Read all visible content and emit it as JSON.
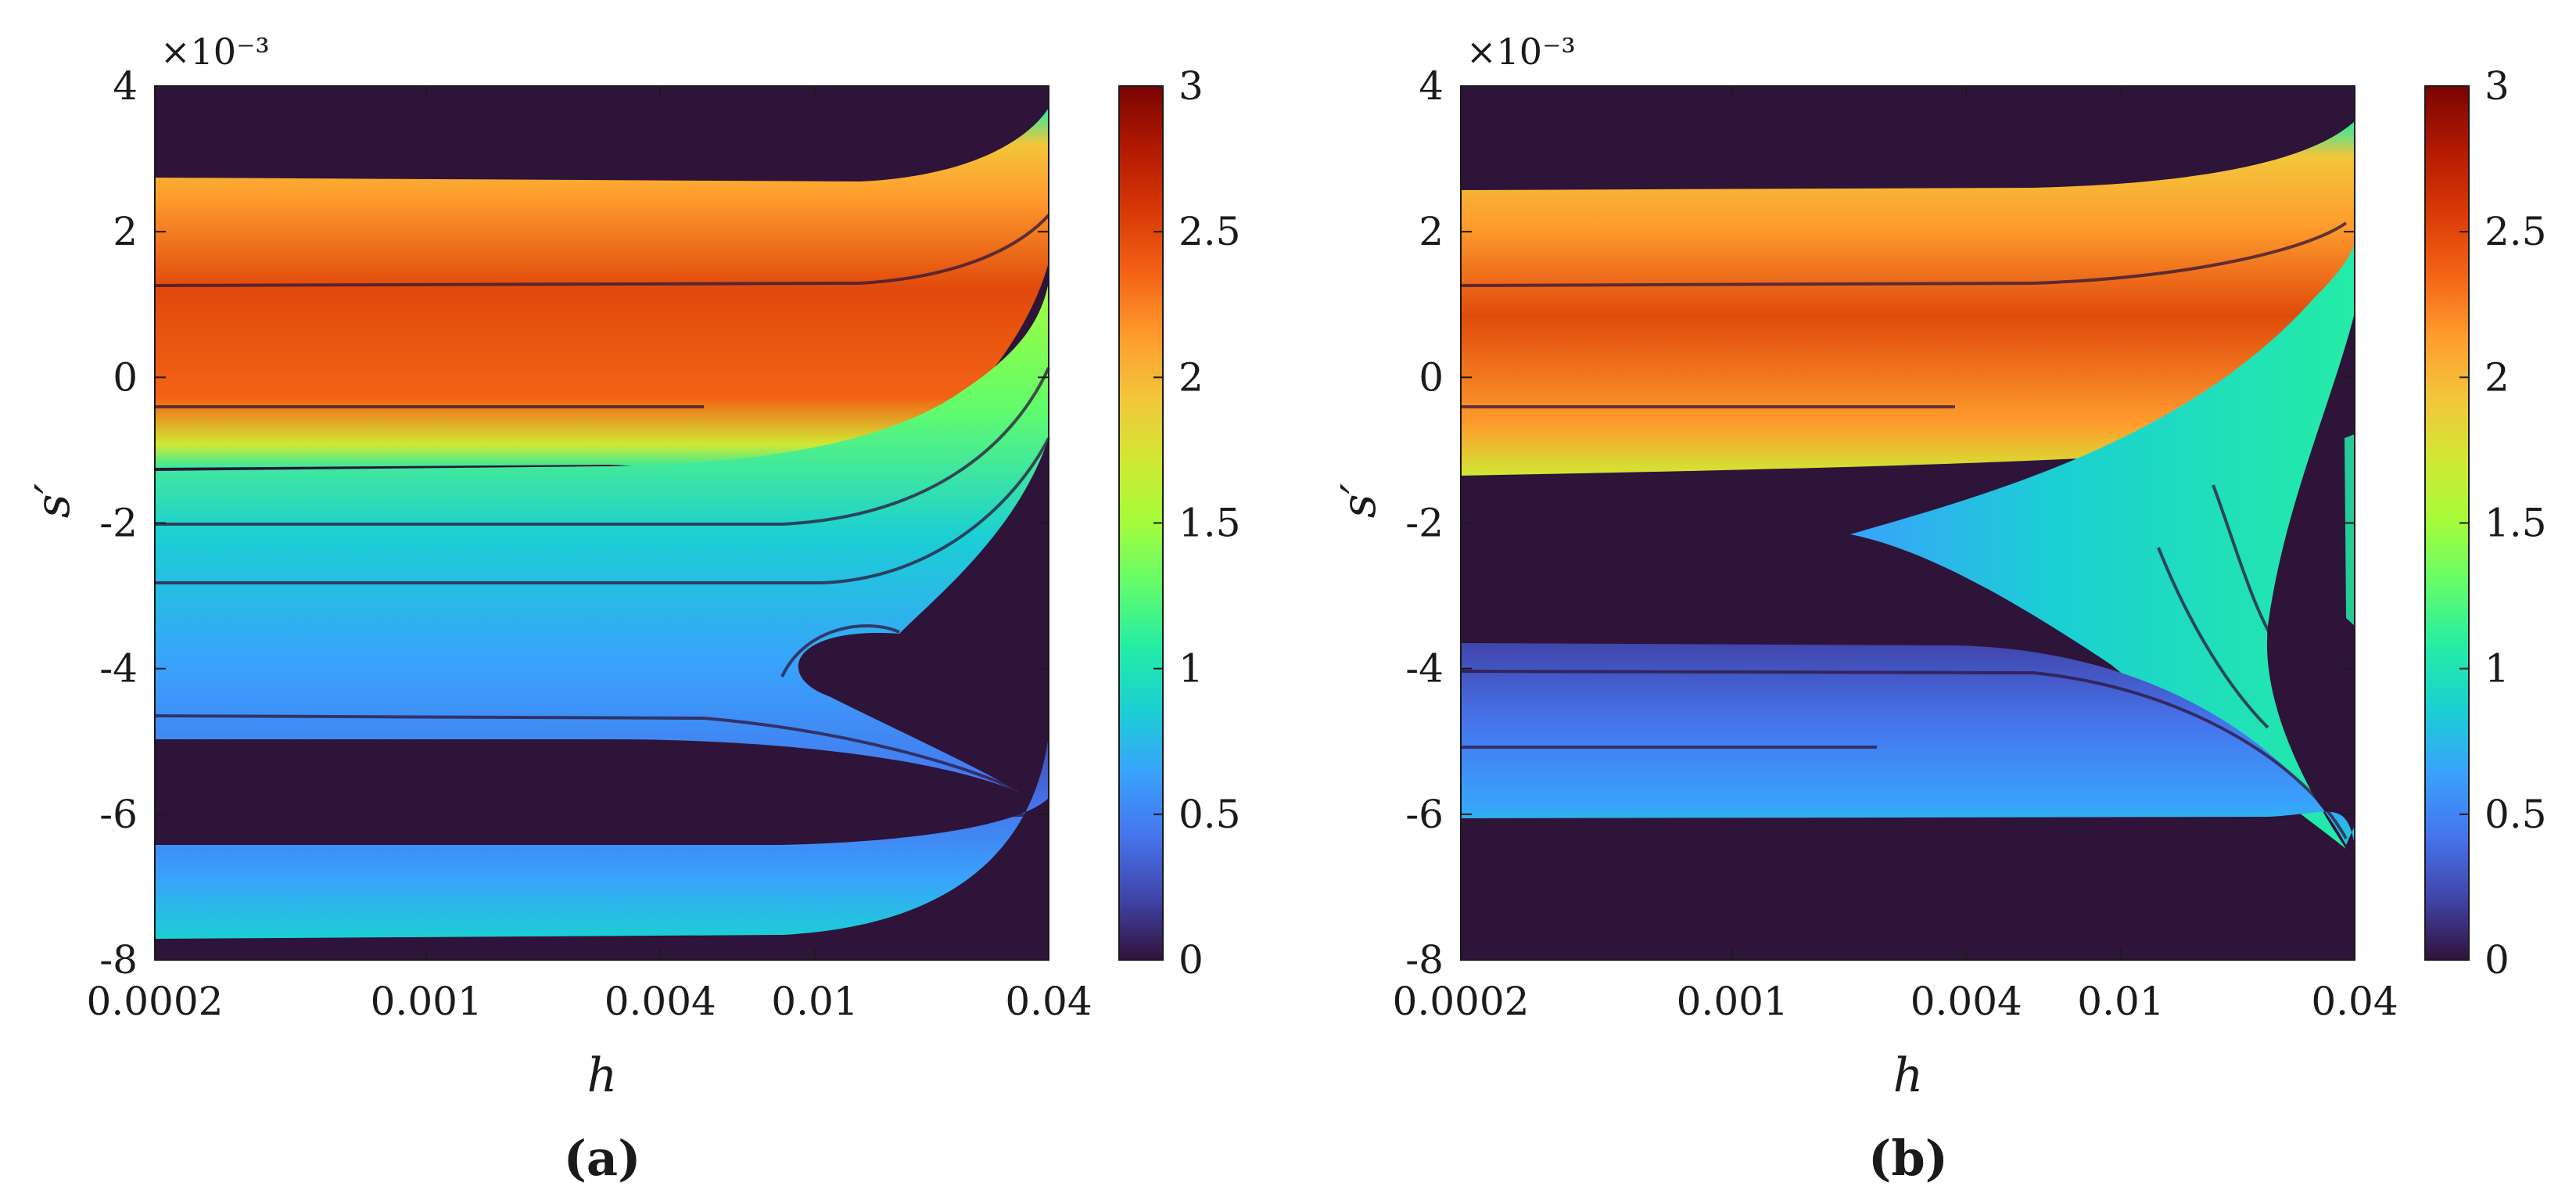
{
  "colors": {
    "background_dark": "#2e1439",
    "colormap": [
      "#30123b",
      "#4145ab",
      "#4675ed",
      "#39a2fc",
      "#1bcfd4",
      "#24eca6",
      "#61fc6c",
      "#a4fc3b",
      "#d1e834",
      "#f3c63a",
      "#fe9b2d",
      "#f36315",
      "#d93806",
      "#b11901",
      "#7a0403"
    ]
  },
  "chart_data": [
    {
      "type": "heatmap",
      "panel": "(a)",
      "xlabel": "h",
      "ylabel": "s′",
      "x_scale": "log",
      "x_range": [
        0.0002,
        0.04
      ],
      "x_ticks": [
        0.0002,
        0.001,
        0.004,
        0.01,
        0.04
      ],
      "x_tick_labels": [
        "0.0002",
        "0.001",
        "0.004",
        "0.01",
        "0.04"
      ],
      "y_range": [
        -0.008,
        0.004
      ],
      "y_ticks": [
        -8,
        -6,
        -4,
        -2,
        0,
        2,
        4
      ],
      "y_tick_labels": [
        "-8",
        "-6",
        "-4",
        "-2",
        "0",
        "2",
        "4"
      ],
      "y_multiplier": "×10⁻³",
      "colorbar_range": [
        0,
        3
      ],
      "colorbar_ticks": [
        0,
        0.5,
        1,
        1.5,
        2,
        2.5,
        3
      ],
      "colorbar_tick_labels": [
        "0",
        "0.5",
        "1",
        "1.5",
        "2",
        "2.5",
        "3"
      ],
      "regions": [
        {
          "name": "upper band",
          "s_range": [
            -1.1,
            2.7
          ],
          "value_range": [
            1.5,
            2.9
          ]
        },
        {
          "name": "middle band",
          "s_range": [
            -5.0,
            -1.3
          ],
          "value_range": [
            0.4,
            1.6
          ]
        },
        {
          "name": "lower band",
          "s_range": [
            -7.6,
            -5.7
          ],
          "value_range": [
            0.3,
            0.9
          ]
        }
      ]
    },
    {
      "type": "heatmap",
      "panel": "(b)",
      "xlabel": "h",
      "ylabel": "s′",
      "x_scale": "log",
      "x_range": [
        0.0002,
        0.04
      ],
      "x_ticks": [
        0.0002,
        0.001,
        0.004,
        0.01,
        0.04
      ],
      "x_tick_labels": [
        "0.0002",
        "0.001",
        "0.004",
        "0.01",
        "0.04"
      ],
      "y_range": [
        -0.008,
        0.004
      ],
      "y_ticks": [
        -8,
        -6,
        -4,
        -2,
        0,
        2,
        4
      ],
      "y_tick_labels": [
        "-8",
        "-6",
        "-4",
        "-2",
        "0",
        "2",
        "4"
      ],
      "y_multiplier": "×10⁻³",
      "colorbar_range": [
        0,
        3
      ],
      "colorbar_ticks": [
        0,
        0.5,
        1,
        1.5,
        2,
        2.5,
        3
      ],
      "colorbar_tick_labels": [
        "0",
        "0.5",
        "1",
        "1.5",
        "2",
        "2.5",
        "3"
      ],
      "regions": [
        {
          "name": "upper band",
          "s_range": [
            -1.3,
            2.6
          ],
          "value_range": [
            1.7,
            2.9
          ]
        },
        {
          "name": "wedge",
          "h_range": [
            0.0025,
            0.04
          ],
          "s_range": [
            -5.4,
            0.8
          ],
          "value_range": [
            0.8,
            1.3
          ]
        },
        {
          "name": "lower band",
          "s_range": [
            -6.0,
            -3.7
          ],
          "value_range": [
            0.3,
            0.9
          ]
        }
      ]
    }
  ],
  "captions": [
    "(a)",
    "(b)"
  ]
}
